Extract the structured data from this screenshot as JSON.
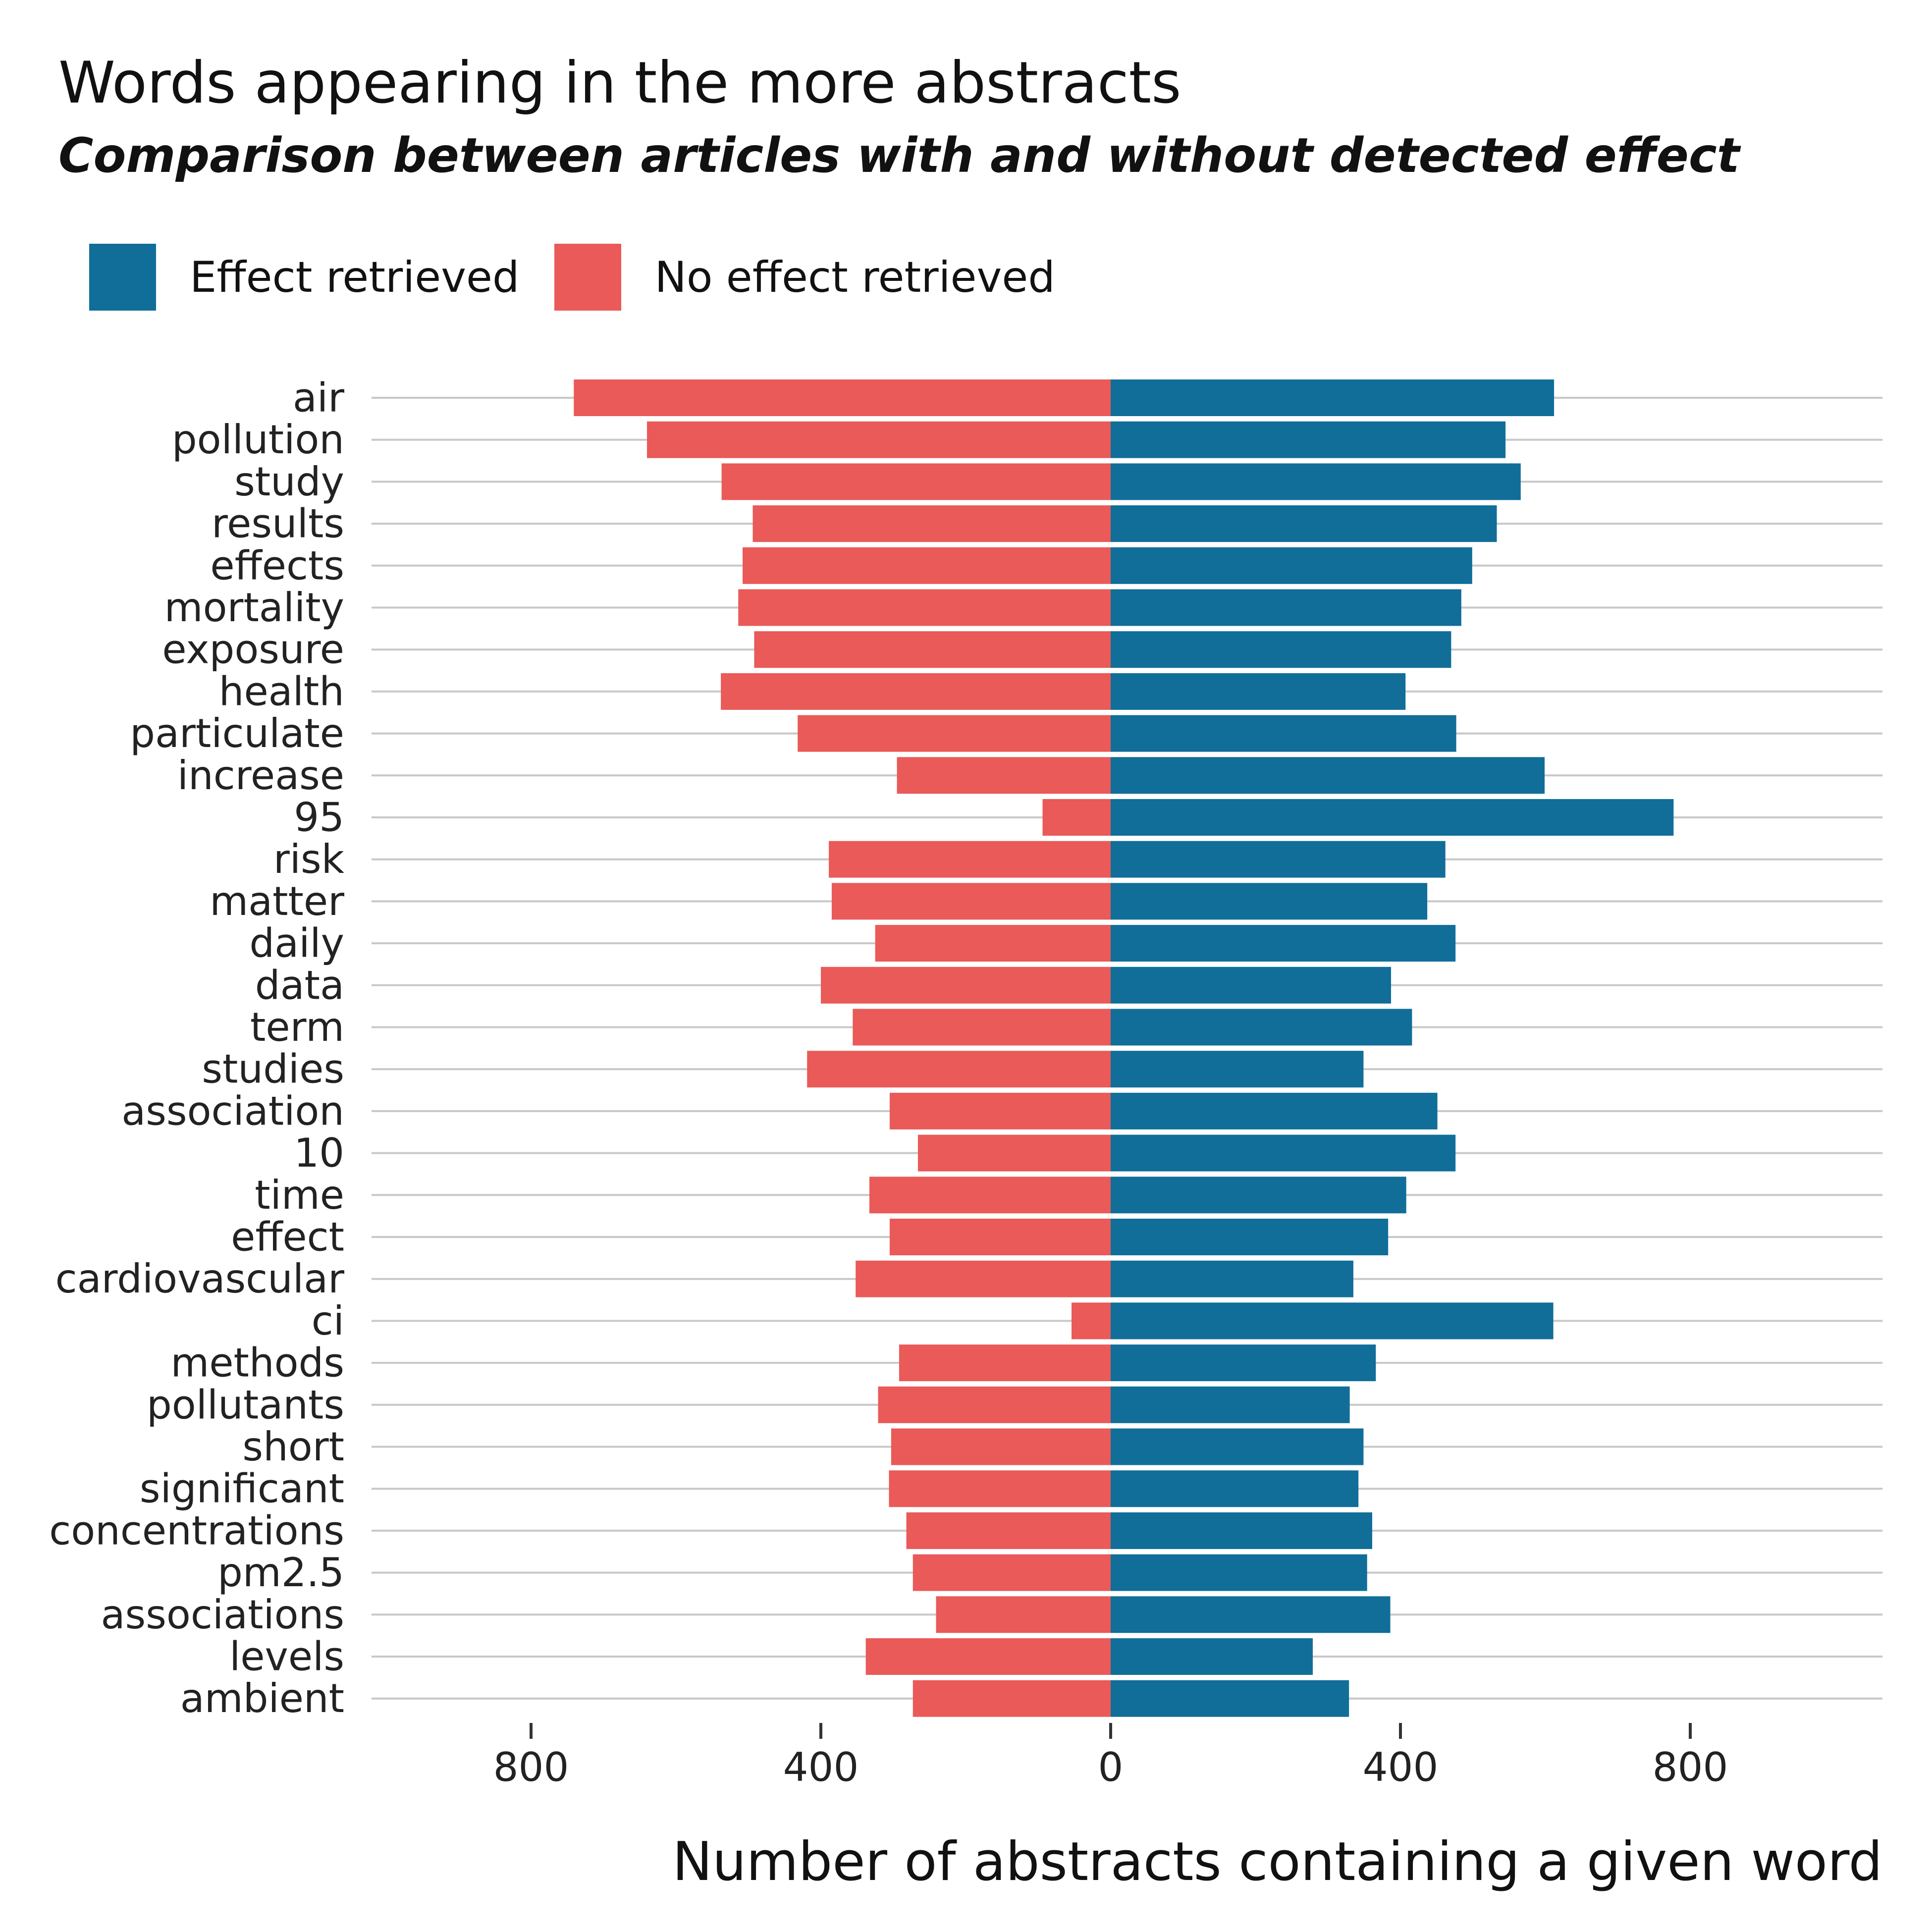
{
  "chart_data": {
    "type": "bar",
    "orientation": "horizontal-diverging",
    "title": "Words appearing in the more abstracts",
    "subtitle": "Comparison between articles with and without detected effect",
    "xlabel": "Number of abstracts containing a given word",
    "ylabel": "",
    "xlim": [
      -840,
      850
    ],
    "x_ticks": [
      {
        "value": -800,
        "label": "800"
      },
      {
        "value": -400,
        "label": "400"
      },
      {
        "value": 0,
        "label": "0"
      },
      {
        "value": 400,
        "label": "400"
      },
      {
        "value": 800,
        "label": "800"
      }
    ],
    "grid": "horizontal",
    "legend_position": "top-left",
    "categories": [
      "air",
      "pollution",
      "study",
      "results",
      "effects",
      "mortality",
      "exposure",
      "health",
      "particulate",
      "increase",
      "95",
      "risk",
      "matter",
      "daily",
      "data",
      "term",
      "studies",
      "association",
      "10",
      "time",
      "effect",
      "cardiovascular",
      "ci",
      "methods",
      "pollutants",
      "short",
      "significant",
      "concentrations",
      "pm2.5",
      "associations",
      "levels",
      "ambient"
    ],
    "series": [
      {
        "name": "Effect retrieved",
        "color": "#106e99",
        "values": [
          612,
          545,
          566,
          533,
          499,
          484,
          470,
          407,
          477,
          599,
          777,
          462,
          437,
          476,
          387,
          416,
          349,
          451,
          476,
          408,
          383,
          335,
          611,
          366,
          330,
          349,
          342,
          361,
          354,
          386,
          279,
          329
        ]
      },
      {
        "name": "No effect retrieved",
        "color": "#e95a58",
        "values": [
          741,
          640,
          537,
          494,
          508,
          514,
          492,
          538,
          432,
          295,
          94,
          389,
          385,
          325,
          400,
          356,
          419,
          305,
          266,
          333,
          305,
          352,
          54,
          292,
          321,
          303,
          306,
          282,
          273,
          241,
          338,
          273
        ]
      }
    ]
  }
}
